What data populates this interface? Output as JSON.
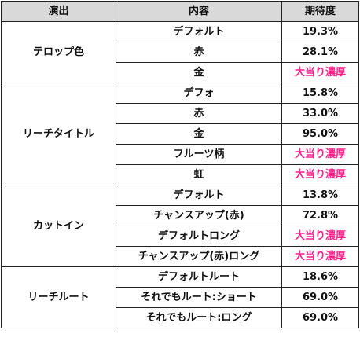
{
  "headers": {
    "effect": "演出",
    "content": "内容",
    "expectation": "期待度"
  },
  "colors": {
    "header_bg": "#d9d9d9",
    "jackpot_text": "#ff1f8a",
    "border": "#222222"
  },
  "groups": [
    {
      "name": "テロップ色",
      "rows": [
        {
          "content": "デフォルト",
          "value": "19.3%",
          "jackpot": false
        },
        {
          "content": "赤",
          "value": "28.1%",
          "jackpot": false
        },
        {
          "content": "金",
          "value": "大当り濃厚",
          "jackpot": true
        }
      ]
    },
    {
      "name": "リーチタイトル",
      "rows": [
        {
          "content": "デフォ",
          "value": "15.8%",
          "jackpot": false
        },
        {
          "content": "赤",
          "value": "33.0%",
          "jackpot": false
        },
        {
          "content": "金",
          "value": "95.0%",
          "jackpot": false
        },
        {
          "content": "フルーツ柄",
          "value": "大当り濃厚",
          "jackpot": true
        },
        {
          "content": "虹",
          "value": "大当り濃厚",
          "jackpot": true
        }
      ]
    },
    {
      "name": "カットイン",
      "rows": [
        {
          "content": "デフォルト",
          "value": "13.8%",
          "jackpot": false
        },
        {
          "content": "チャンスアップ(赤)",
          "value": "72.8%",
          "jackpot": false
        },
        {
          "content": "デフォルトロング",
          "value": "大当り濃厚",
          "jackpot": true
        },
        {
          "content": "チャンスアップ(赤)ロング",
          "value": "大当り濃厚",
          "jackpot": true
        }
      ]
    },
    {
      "name": "リーチルート",
      "rows": [
        {
          "content": "デフォルトルート",
          "value": "18.6%",
          "jackpot": false
        },
        {
          "content": "それでもルート:ショート",
          "value": "69.0%",
          "jackpot": false
        },
        {
          "content": "それでもルート:ロング",
          "value": "69.0%",
          "jackpot": false
        }
      ]
    }
  ]
}
